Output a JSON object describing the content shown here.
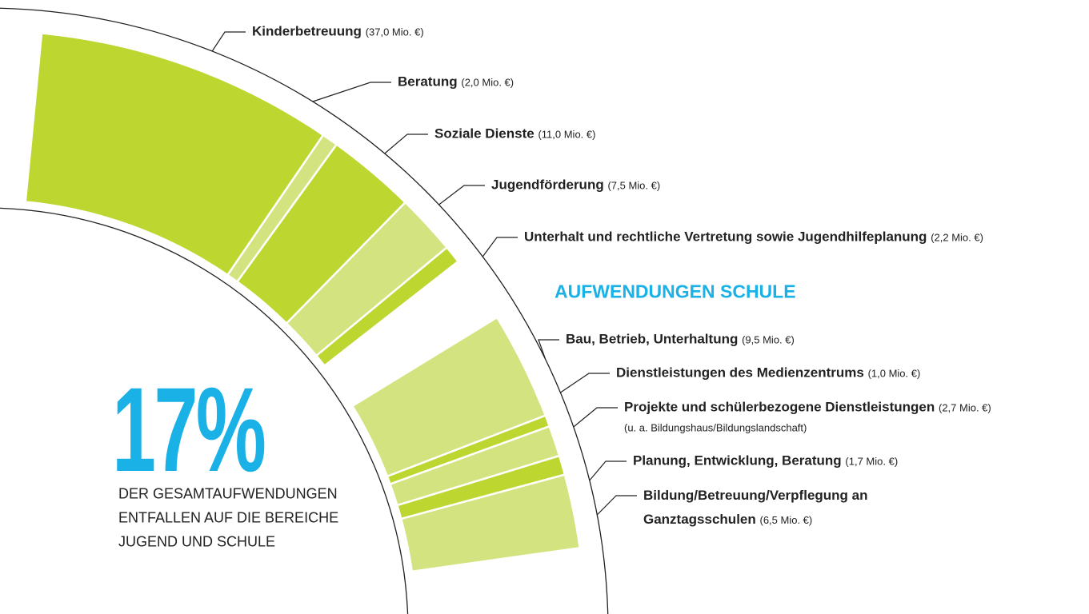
{
  "chart_data": {
    "type": "ring",
    "highlight": "17%",
    "caption": [
      "DER GESAMTAUFWENDUNGEN",
      "ENTFALLEN AUF DIE BEREICHE",
      "JUGEND UND SCHULE"
    ],
    "groups": [
      {
        "name": null,
        "categories": [
          "Kinderbetreuung",
          "Beratung",
          "Soziale Dienste",
          "Jugendförderung",
          "Unterhalt und rechtliche Vertretung sowie Jugendhilfeplanung"
        ],
        "values": [
          37.0,
          2.0,
          11.0,
          7.5,
          2.2
        ],
        "value_labels": [
          "(37,0 Mio. €)",
          "(2,0 Mio. €)",
          "(11,0 Mio. €)",
          "(7,5 Mio. €)",
          "(2,2 Mio. €)"
        ],
        "notes": [
          null,
          null,
          null,
          null,
          null
        ],
        "colors": [
          "#bed630",
          "#d3e37f",
          "#bed630",
          "#d3e37f",
          "#bed630"
        ]
      },
      {
        "name": "AUFWENDUNGEN SCHULE",
        "categories": [
          "Bau, Betrieb, Unterhaltung",
          "Dienstleistungen des Medienzentrums",
          "Projekte und schülerbezogene Dienstleistungen",
          "Planung, Entwicklung, Beratung",
          "Bildung/Betreuung/Verpflegung an Ganztagsschulen"
        ],
        "values": [
          9.5,
          1.0,
          2.7,
          1.7,
          6.5
        ],
        "value_labels": [
          "(9,5 Mio. €)",
          "(1,0 Mio. €)",
          "(2,7 Mio. €)",
          "(1,7 Mio. €)",
          "(6,5 Mio. €)"
        ],
        "notes": [
          null,
          null,
          "(u. a. Bildungshaus/Bildungslandschaft)",
          null,
          null
        ],
        "colors": [
          "#d3e37f",
          "#bed630",
          "#d3e37f",
          "#bed630",
          "#d3e37f"
        ]
      }
    ]
  }
}
